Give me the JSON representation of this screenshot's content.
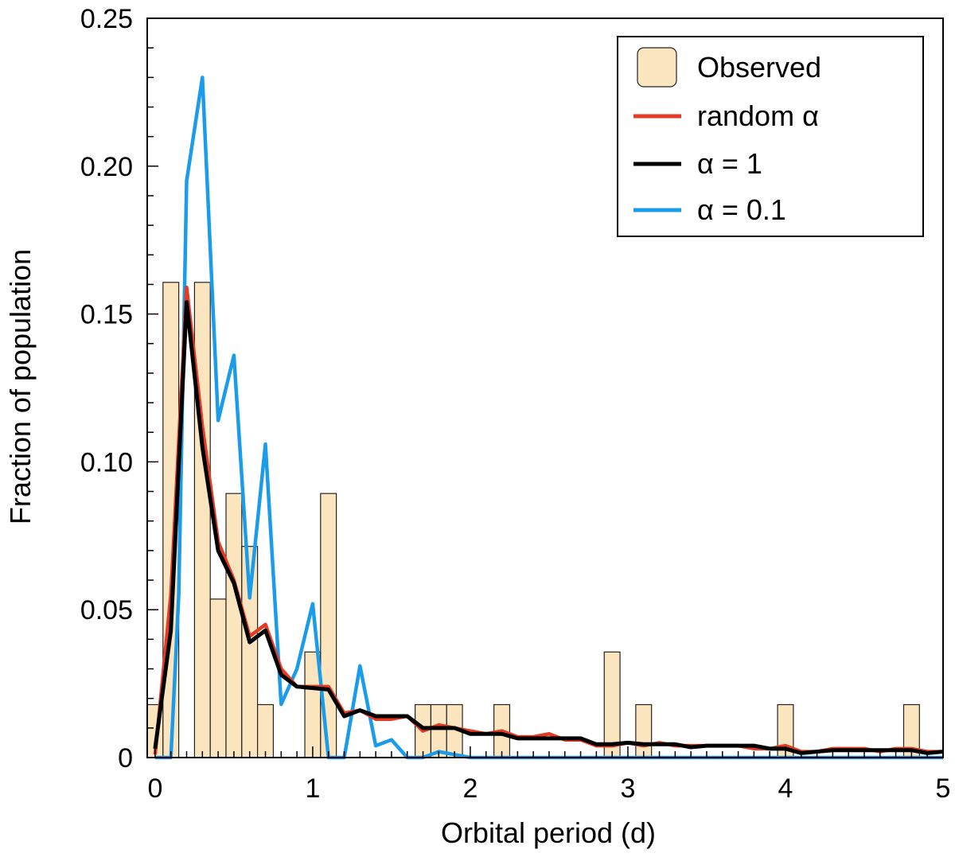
{
  "chart_data": {
    "type": "bar",
    "title": "",
    "xlabel": "Orbital period (d)",
    "ylabel": "Fraction of population",
    "xlim": [
      -0.05,
      5
    ],
    "ylim": [
      0,
      0.25
    ],
    "x_ticks": [
      0,
      1,
      2,
      3,
      4,
      5
    ],
    "x_tick_labels": [
      "0",
      "1",
      "2",
      "3",
      "4",
      "5"
    ],
    "y_ticks": [
      0,
      0.05,
      0.1,
      0.15,
      0.2,
      0.25
    ],
    "y_tick_labels": [
      "0",
      "0.05",
      "0.10",
      "0.15",
      "0.20",
      "0.25"
    ],
    "legend_position": "top-right",
    "colors": {
      "observed_fill": "#fbe5bf",
      "observed_edge": "#222222",
      "random_alpha": "#e63a25",
      "alpha_1": "#000000",
      "alpha_01": "#1b9cea"
    },
    "histogram": {
      "name": "Observed",
      "bin_width": 0.1,
      "bins": [
        {
          "x0": -0.05,
          "value": 0.0179
        },
        {
          "x0": 0.05,
          "value": 0.1607
        },
        {
          "x0": 0.25,
          "value": 0.1607
        },
        {
          "x0": 0.35,
          "value": 0.0536
        },
        {
          "x0": 0.45,
          "value": 0.0893
        },
        {
          "x0": 0.55,
          "value": 0.0714
        },
        {
          "x0": 0.65,
          "value": 0.0179
        },
        {
          "x0": 0.95,
          "value": 0.0357
        },
        {
          "x0": 1.05,
          "value": 0.0893
        },
        {
          "x0": 1.65,
          "value": 0.0179
        },
        {
          "x0": 1.75,
          "value": 0.0179
        },
        {
          "x0": 1.85,
          "value": 0.0179
        },
        {
          "x0": 2.15,
          "value": 0.0179
        },
        {
          "x0": 2.85,
          "value": 0.0357
        },
        {
          "x0": 3.05,
          "value": 0.0179
        },
        {
          "x0": 3.95,
          "value": 0.0179
        },
        {
          "x0": 4.75,
          "value": 0.0179
        }
      ]
    },
    "series": [
      {
        "name": "random α",
        "color_key": "random_alpha",
        "x": [
          0,
          0.1,
          0.2,
          0.3,
          0.4,
          0.5,
          0.6,
          0.7,
          0.8,
          0.9,
          1.0,
          1.1,
          1.2,
          1.3,
          1.4,
          1.5,
          1.6,
          1.7,
          1.8,
          1.9,
          2.0,
          2.1,
          2.2,
          2.3,
          2.4,
          2.5,
          2.6,
          2.7,
          2.8,
          2.9,
          3.0,
          3.1,
          3.2,
          3.3,
          3.4,
          3.5,
          3.6,
          3.7,
          3.8,
          3.9,
          4.0,
          4.1,
          4.2,
          4.3,
          4.4,
          4.5,
          4.6,
          4.7,
          4.8,
          4.9,
          5.0
        ],
        "values": [
          0.001,
          0.055,
          0.159,
          0.112,
          0.073,
          0.06,
          0.041,
          0.045,
          0.03,
          0.024,
          0.024,
          0.024,
          0.015,
          0.016,
          0.013,
          0.013,
          0.014,
          0.009,
          0.011,
          0.01,
          0.009,
          0.008,
          0.009,
          0.007,
          0.007,
          0.008,
          0.006,
          0.006,
          0.004,
          0.004,
          0.005,
          0.004,
          0.005,
          0.004,
          0.004,
          0.004,
          0.004,
          0.004,
          0.003,
          0.003,
          0.004,
          0.002,
          0.002,
          0.003,
          0.003,
          0.003,
          0.002,
          0.003,
          0.003,
          0.002,
          0.002
        ]
      },
      {
        "name": "α = 1",
        "color_key": "alpha_1",
        "x": [
          0,
          0.1,
          0.2,
          0.3,
          0.4,
          0.5,
          0.6,
          0.7,
          0.8,
          0.9,
          1.0,
          1.1,
          1.2,
          1.3,
          1.4,
          1.5,
          1.6,
          1.7,
          1.8,
          1.9,
          2.0,
          2.1,
          2.2,
          2.3,
          2.4,
          2.5,
          2.6,
          2.7,
          2.8,
          2.9,
          3.0,
          3.1,
          3.2,
          3.3,
          3.4,
          3.5,
          3.6,
          3.7,
          3.8,
          3.9,
          4.0,
          4.1,
          4.2,
          4.3,
          4.4,
          4.5,
          4.6,
          4.7,
          4.8,
          4.9,
          5.0
        ],
        "values": [
          0.003,
          0.043,
          0.154,
          0.105,
          0.07,
          0.059,
          0.039,
          0.043,
          0.028,
          0.024,
          0.0235,
          0.023,
          0.014,
          0.016,
          0.014,
          0.014,
          0.014,
          0.01,
          0.01,
          0.01,
          0.008,
          0.008,
          0.008,
          0.0065,
          0.0065,
          0.0065,
          0.0065,
          0.0065,
          0.0045,
          0.0045,
          0.005,
          0.0045,
          0.0045,
          0.0045,
          0.0035,
          0.004,
          0.004,
          0.004,
          0.004,
          0.003,
          0.003,
          0.0015,
          0.002,
          0.0025,
          0.0025,
          0.0025,
          0.0025,
          0.0025,
          0.0025,
          0.0015,
          0.002
        ]
      },
      {
        "name": "α = 0.1",
        "color_key": "alpha_01",
        "x": [
          0,
          0.1,
          0.15,
          0.2,
          0.3,
          0.4,
          0.5,
          0.6,
          0.7,
          0.8,
          0.9,
          1.0,
          1.1,
          1.2,
          1.3,
          1.4,
          1.5,
          1.6,
          1.7,
          1.8,
          1.9,
          2.0,
          3.0,
          4.0,
          5.0
        ],
        "values": [
          0,
          0,
          0.055,
          0.195,
          0.23,
          0.114,
          0.136,
          0.054,
          0.106,
          0.018,
          0.03,
          0.052,
          0,
          0,
          0.031,
          0.004,
          0.006,
          0,
          0,
          0.002,
          0.001,
          0,
          0,
          0,
          0
        ]
      }
    ]
  }
}
